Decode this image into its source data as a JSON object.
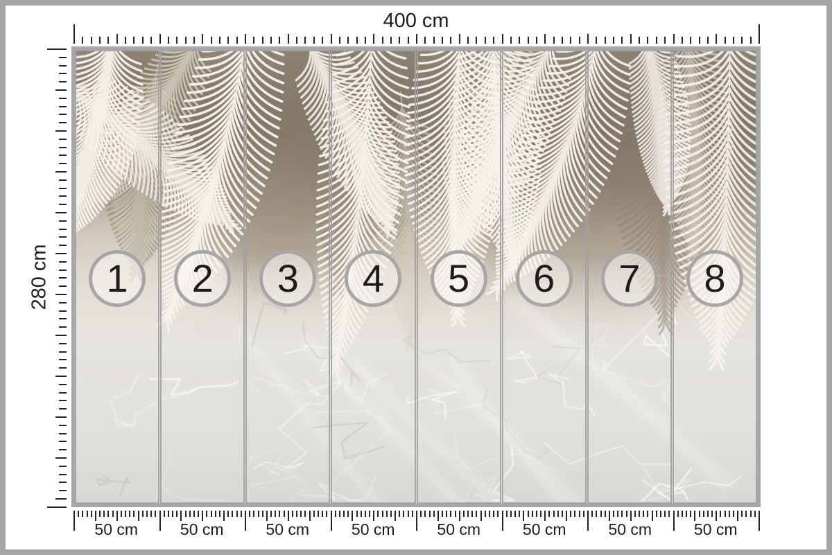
{
  "rulers": {
    "top": {
      "label": "400 cm"
    },
    "left": {
      "label": "280 cm"
    }
  },
  "panels": [
    {
      "number": "1",
      "size_label": "50 cm"
    },
    {
      "number": "2",
      "size_label": "50 cm"
    },
    {
      "number": "3",
      "size_label": "50 cm"
    },
    {
      "number": "4",
      "size_label": "50 cm"
    },
    {
      "number": "5",
      "size_label": "50 cm"
    },
    {
      "number": "6",
      "size_label": "50 cm"
    },
    {
      "number": "7",
      "size_label": "50 cm"
    },
    {
      "number": "8",
      "size_label": "50 cm"
    }
  ],
  "artwork": {
    "description": "White palm fronds hanging over a taupe concrete wall fading into light grey marble, split into 8 numbered wallpaper strips"
  },
  "colors": {
    "frame": "#a5a5a5",
    "mural_border": "#a6a6a6",
    "panel_divider": "rgba(162,162,162,0.92)",
    "circle_ring": "#a6a6a6",
    "circle_fill": "rgba(250,248,244,0.55)",
    "digit": "#1c1c1c",
    "tick": "#242424",
    "label": "#1d1d1d",
    "leaf_bright": "#f6f3ec",
    "leaf_mid": "#d8d1c3",
    "leaf_shadow": "#8b8071",
    "wall_dark": "#7e7263",
    "wall_light": "#e7e4de",
    "marble_base": "#e2e0dc",
    "marble_vein": "#ffffff"
  }
}
